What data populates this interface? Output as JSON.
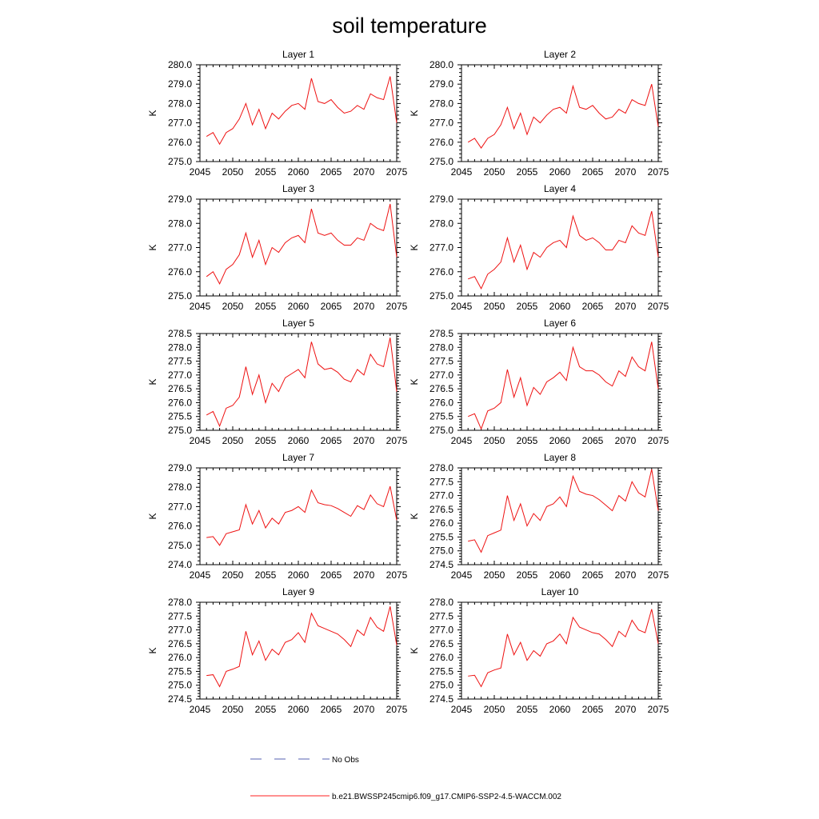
{
  "figure": {
    "title": "soil temperature",
    "ylabel": "K"
  },
  "chart_data": [
    {
      "type": "line",
      "title": "Layer 1",
      "ylabel": "K",
      "xlim": [
        2045,
        2075
      ],
      "ylim": [
        275.0,
        280.0
      ],
      "xticks": [
        2045,
        2050,
        2055,
        2060,
        2065,
        2070,
        2075
      ],
      "yticks": [
        "275.0",
        "276.0",
        "277.0",
        "278.0",
        "279.0",
        "280.0"
      ],
      "x": [
        2046,
        2047,
        2048,
        2049,
        2050,
        2051,
        2052,
        2053,
        2054,
        2055,
        2056,
        2057,
        2058,
        2059,
        2060,
        2061,
        2062,
        2063,
        2064,
        2065,
        2066,
        2067,
        2068,
        2069,
        2070,
        2071,
        2072,
        2073,
        2074,
        2075
      ],
      "series": [
        {
          "name": "b.e21.BWSSP245cmip6.f09_g17.CMIP6-SSP2-4.5-WACCM.002",
          "values": [
            276.3,
            276.5,
            275.9,
            276.5,
            276.7,
            277.2,
            278.0,
            276.9,
            277.7,
            276.7,
            277.5,
            277.2,
            277.6,
            277.9,
            278.0,
            277.7,
            279.3,
            278.1,
            278.0,
            278.2,
            277.8,
            277.5,
            277.6,
            277.9,
            277.7,
            278.5,
            278.3,
            278.2,
            279.4,
            277.0
          ]
        }
      ]
    },
    {
      "type": "line",
      "title": "Layer 2",
      "ylabel": "K",
      "xlim": [
        2045,
        2075
      ],
      "ylim": [
        275.0,
        280.0
      ],
      "xticks": [
        2045,
        2050,
        2055,
        2060,
        2065,
        2070,
        2075
      ],
      "yticks": [
        "275.0",
        "276.0",
        "277.0",
        "278.0",
        "279.0",
        "280.0"
      ],
      "x": [
        2046,
        2047,
        2048,
        2049,
        2050,
        2051,
        2052,
        2053,
        2054,
        2055,
        2056,
        2057,
        2058,
        2059,
        2060,
        2061,
        2062,
        2063,
        2064,
        2065,
        2066,
        2067,
        2068,
        2069,
        2070,
        2071,
        2072,
        2073,
        2074,
        2075
      ],
      "series": [
        {
          "name": "b.e21.BWSSP245cmip6.f09_g17.CMIP6-SSP2-4.5-WACCM.002",
          "values": [
            276.0,
            276.2,
            275.7,
            276.2,
            276.4,
            276.9,
            277.8,
            276.7,
            277.5,
            276.4,
            277.3,
            277.0,
            277.4,
            277.7,
            277.8,
            277.5,
            278.9,
            277.8,
            277.7,
            277.9,
            277.5,
            277.2,
            277.3,
            277.7,
            277.5,
            278.2,
            278.0,
            277.9,
            279.0,
            276.8
          ]
        }
      ]
    },
    {
      "type": "line",
      "title": "Layer 3",
      "ylabel": "K",
      "xlim": [
        2045,
        2075
      ],
      "ylim": [
        275.0,
        279.0
      ],
      "xticks": [
        2045,
        2050,
        2055,
        2060,
        2065,
        2070,
        2075
      ],
      "yticks": [
        "275.0",
        "276.0",
        "277.0",
        "278.0",
        "279.0"
      ],
      "x": [
        2046,
        2047,
        2048,
        2049,
        2050,
        2051,
        2052,
        2053,
        2054,
        2055,
        2056,
        2057,
        2058,
        2059,
        2060,
        2061,
        2062,
        2063,
        2064,
        2065,
        2066,
        2067,
        2068,
        2069,
        2070,
        2071,
        2072,
        2073,
        2074,
        2075
      ],
      "series": [
        {
          "name": "b.e21.BWSSP245cmip6.f09_g17.CMIP6-SSP2-4.5-WACCM.002",
          "values": [
            275.8,
            276.0,
            275.5,
            276.1,
            276.3,
            276.7,
            277.6,
            276.6,
            277.3,
            276.3,
            277.0,
            276.8,
            277.2,
            277.4,
            277.5,
            277.2,
            278.6,
            277.6,
            277.5,
            277.6,
            277.3,
            277.1,
            277.1,
            277.4,
            277.3,
            278.0,
            277.8,
            277.7,
            278.8,
            276.6
          ]
        }
      ]
    },
    {
      "type": "line",
      "title": "Layer 4",
      "ylabel": "K",
      "xlim": [
        2045,
        2075
      ],
      "ylim": [
        275.0,
        279.0
      ],
      "xticks": [
        2045,
        2050,
        2055,
        2060,
        2065,
        2070,
        2075
      ],
      "yticks": [
        "275.0",
        "276.0",
        "277.0",
        "278.0",
        "279.0"
      ],
      "x": [
        2046,
        2047,
        2048,
        2049,
        2050,
        2051,
        2052,
        2053,
        2054,
        2055,
        2056,
        2057,
        2058,
        2059,
        2060,
        2061,
        2062,
        2063,
        2064,
        2065,
        2066,
        2067,
        2068,
        2069,
        2070,
        2071,
        2072,
        2073,
        2074,
        2075
      ],
      "series": [
        {
          "name": "b.e21.BWSSP245cmip6.f09_g17.CMIP6-SSP2-4.5-WACCM.002",
          "values": [
            275.7,
            275.8,
            275.3,
            275.9,
            276.1,
            276.4,
            277.4,
            276.4,
            277.1,
            276.1,
            276.8,
            276.6,
            277.0,
            277.2,
            277.3,
            277.0,
            278.3,
            277.5,
            277.3,
            277.4,
            277.2,
            276.9,
            276.9,
            277.3,
            277.2,
            277.9,
            277.6,
            277.5,
            278.5,
            276.6
          ]
        }
      ]
    },
    {
      "type": "line",
      "title": "Layer 5",
      "ylabel": "K",
      "xlim": [
        2045,
        2075
      ],
      "ylim": [
        275.0,
        278.5
      ],
      "xticks": [
        2045,
        2050,
        2055,
        2060,
        2065,
        2070,
        2075
      ],
      "yticks": [
        "275.0",
        "275.5",
        "276.0",
        "276.5",
        "277.0",
        "277.5",
        "278.0",
        "278.5"
      ],
      "x": [
        2046,
        2047,
        2048,
        2049,
        2050,
        2051,
        2052,
        2053,
        2054,
        2055,
        2056,
        2057,
        2058,
        2059,
        2060,
        2061,
        2062,
        2063,
        2064,
        2065,
        2066,
        2067,
        2068,
        2069,
        2070,
        2071,
        2072,
        2073,
        2074,
        2075
      ],
      "series": [
        {
          "name": "b.e21.BWSSP245cmip6.f09_g17.CMIP6-SSP2-4.5-WACCM.002",
          "values": [
            275.55,
            275.68,
            275.15,
            275.8,
            275.9,
            276.2,
            277.3,
            276.3,
            277.0,
            276.0,
            276.7,
            276.4,
            276.9,
            277.05,
            277.2,
            276.9,
            278.2,
            277.4,
            277.2,
            277.25,
            277.1,
            276.85,
            276.75,
            277.2,
            277.0,
            277.75,
            277.4,
            277.3,
            278.35,
            276.4
          ]
        }
      ]
    },
    {
      "type": "line",
      "title": "Layer 6",
      "ylabel": "K",
      "xlim": [
        2045,
        2075
      ],
      "ylim": [
        275.0,
        278.5
      ],
      "xticks": [
        2045,
        2050,
        2055,
        2060,
        2065,
        2070,
        2075
      ],
      "yticks": [
        "275.0",
        "275.5",
        "276.0",
        "276.5",
        "277.0",
        "277.5",
        "278.0",
        "278.5"
      ],
      "x": [
        2046,
        2047,
        2048,
        2049,
        2050,
        2051,
        2052,
        2053,
        2054,
        2055,
        2056,
        2057,
        2058,
        2059,
        2060,
        2061,
        2062,
        2063,
        2064,
        2065,
        2066,
        2067,
        2068,
        2069,
        2070,
        2071,
        2072,
        2073,
        2074,
        2075
      ],
      "series": [
        {
          "name": "b.e21.BWSSP245cmip6.f09_g17.CMIP6-SSP2-4.5-WACCM.002",
          "values": [
            275.5,
            275.6,
            275.05,
            275.7,
            275.8,
            276.0,
            277.2,
            276.2,
            276.9,
            275.9,
            276.55,
            276.3,
            276.75,
            276.9,
            277.1,
            276.8,
            278.0,
            277.3,
            277.15,
            277.15,
            277.0,
            276.75,
            276.6,
            277.15,
            276.95,
            277.65,
            277.3,
            277.15,
            278.2,
            276.5
          ]
        }
      ]
    },
    {
      "type": "line",
      "title": "Layer 7",
      "ylabel": "K",
      "xlim": [
        2045,
        2075
      ],
      "ylim": [
        274.0,
        279.0
      ],
      "xticks": [
        2045,
        2050,
        2055,
        2060,
        2065,
        2070,
        2075
      ],
      "yticks": [
        "274.0",
        "275.0",
        "276.0",
        "277.0",
        "278.0",
        "279.0"
      ],
      "x": [
        2046,
        2047,
        2048,
        2049,
        2050,
        2051,
        2052,
        2053,
        2054,
        2055,
        2056,
        2057,
        2058,
        2059,
        2060,
        2061,
        2062,
        2063,
        2064,
        2065,
        2066,
        2067,
        2068,
        2069,
        2070,
        2071,
        2072,
        2073,
        2074,
        2075
      ],
      "series": [
        {
          "name": "b.e21.BWSSP245cmip6.f09_g17.CMIP6-SSP2-4.5-WACCM.002",
          "values": [
            275.4,
            275.45,
            275.0,
            275.6,
            275.7,
            275.8,
            277.1,
            276.1,
            276.8,
            275.9,
            276.4,
            276.1,
            276.7,
            276.8,
            277.0,
            276.7,
            277.85,
            277.2,
            277.1,
            277.05,
            276.9,
            276.7,
            276.5,
            277.05,
            276.85,
            277.6,
            277.15,
            277.0,
            278.05,
            276.3
          ]
        }
      ]
    },
    {
      "type": "line",
      "title": "Layer 8",
      "ylabel": "K",
      "xlim": [
        2045,
        2075
      ],
      "ylim": [
        274.5,
        278.0
      ],
      "xticks": [
        2045,
        2050,
        2055,
        2060,
        2065,
        2070,
        2075
      ],
      "yticks": [
        "274.5",
        "275.0",
        "275.5",
        "276.0",
        "276.5",
        "277.0",
        "277.5",
        "278.0"
      ],
      "x": [
        2046,
        2047,
        2048,
        2049,
        2050,
        2051,
        2052,
        2053,
        2054,
        2055,
        2056,
        2057,
        2058,
        2059,
        2060,
        2061,
        2062,
        2063,
        2064,
        2065,
        2066,
        2067,
        2068,
        2069,
        2070,
        2071,
        2072,
        2073,
        2074,
        2075
      ],
      "series": [
        {
          "name": "b.e21.BWSSP245cmip6.f09_g17.CMIP6-SSP2-4.5-WACCM.002",
          "values": [
            275.35,
            275.4,
            274.95,
            275.55,
            275.65,
            275.75,
            277.0,
            276.1,
            276.7,
            275.9,
            276.35,
            276.1,
            276.6,
            276.7,
            276.95,
            276.6,
            277.7,
            277.15,
            277.05,
            277.0,
            276.85,
            276.65,
            276.45,
            277.0,
            276.8,
            277.5,
            277.1,
            276.95,
            277.95,
            276.45
          ]
        }
      ]
    },
    {
      "type": "line",
      "title": "Layer 9",
      "ylabel": "K",
      "xlim": [
        2045,
        2075
      ],
      "ylim": [
        274.5,
        278.0
      ],
      "xticks": [
        2045,
        2050,
        2055,
        2060,
        2065,
        2070,
        2075
      ],
      "yticks": [
        "274.5",
        "275.0",
        "275.5",
        "276.0",
        "276.5",
        "277.0",
        "277.5",
        "278.0"
      ],
      "x": [
        2046,
        2047,
        2048,
        2049,
        2050,
        2051,
        2052,
        2053,
        2054,
        2055,
        2056,
        2057,
        2058,
        2059,
        2060,
        2061,
        2062,
        2063,
        2064,
        2065,
        2066,
        2067,
        2068,
        2069,
        2070,
        2071,
        2072,
        2073,
        2074,
        2075
      ],
      "series": [
        {
          "name": "b.e21.BWSSP245cmip6.f09_g17.CMIP6-SSP2-4.5-WACCM.002",
          "values": [
            275.35,
            275.38,
            274.95,
            275.5,
            275.58,
            275.68,
            276.95,
            276.1,
            276.6,
            275.9,
            276.3,
            276.1,
            276.55,
            276.65,
            276.9,
            276.55,
            277.6,
            277.15,
            277.05,
            276.95,
            276.85,
            276.65,
            276.4,
            277.0,
            276.8,
            277.45,
            277.1,
            276.95,
            277.85,
            276.45
          ]
        }
      ]
    },
    {
      "type": "line",
      "title": "Layer 10",
      "ylabel": "K",
      "xlim": [
        2045,
        2075
      ],
      "ylim": [
        274.5,
        278.0
      ],
      "xticks": [
        2045,
        2050,
        2055,
        2060,
        2065,
        2070,
        2075
      ],
      "yticks": [
        "274.5",
        "275.0",
        "275.5",
        "276.0",
        "276.5",
        "277.0",
        "277.5",
        "278.0"
      ],
      "x": [
        2046,
        2047,
        2048,
        2049,
        2050,
        2051,
        2052,
        2053,
        2054,
        2055,
        2056,
        2057,
        2058,
        2059,
        2060,
        2061,
        2062,
        2063,
        2064,
        2065,
        2066,
        2067,
        2068,
        2069,
        2070,
        2071,
        2072,
        2073,
        2074,
        2075
      ],
      "series": [
        {
          "name": "b.e21.BWSSP245cmip6.f09_g17.CMIP6-SSP2-4.5-WACCM.002",
          "values": [
            275.33,
            275.36,
            274.95,
            275.45,
            275.55,
            275.62,
            276.85,
            276.1,
            276.55,
            275.9,
            276.25,
            276.05,
            276.5,
            276.6,
            276.85,
            276.5,
            277.45,
            277.1,
            277.0,
            276.9,
            276.85,
            276.65,
            276.4,
            276.95,
            276.75,
            277.35,
            277.0,
            276.9,
            277.75,
            276.5
          ]
        }
      ]
    }
  ],
  "legend": {
    "items": [
      {
        "label": "No Obs",
        "color": "#5560b0",
        "style": "dashed"
      },
      {
        "label": "b.e21.BWSSP245cmip6.f09_g17.CMIP6-SSP2-4.5-WACCM.002",
        "color": "#ff2020",
        "style": "solid"
      }
    ]
  },
  "colors": {
    "series": "#ee1111",
    "axis": "#000000"
  }
}
